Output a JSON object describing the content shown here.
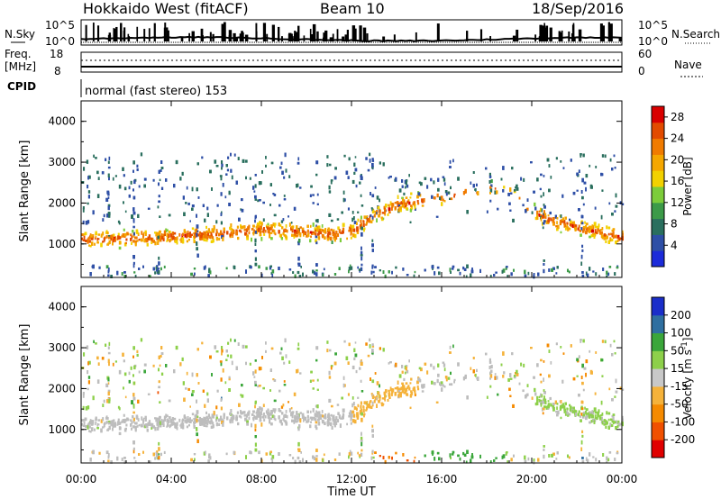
{
  "header": {
    "station": "Hokkaido West (fitACF)",
    "beam": "Beam 10",
    "date": "18/Sep/2016"
  },
  "strips": {
    "nsky_label": "N.Sky",
    "nsearch_label": "N.Search",
    "noise_tick_top": "10^5",
    "noise_tick_bottom": "10^0",
    "freq_label": "Freq.",
    "freq_units": "[MHz]",
    "freq_ticks": [
      "18",
      "8"
    ],
    "nave_label": "Nave",
    "nave_ticks": [
      "60",
      "0"
    ],
    "cpid_label": "CPID",
    "cpid_text": "normal (fast stereo) 153"
  },
  "colors": {
    "power": [
      "#1c2bd9",
      "#2e4fa6",
      "#2a6f5e",
      "#3c9a48",
      "#7ccc3a",
      "#f2d100",
      "#f5a700",
      "#f07b00",
      "#e24b00",
      "#d90000"
    ],
    "velocity": [
      "#e00000",
      "#f05000",
      "#f58a00",
      "#f5b23a",
      "#c8c8c8",
      "#8dd04a",
      "#3aa63a",
      "#2f6fa0",
      "#1a2ec9"
    ],
    "echo_gray": "#bdbdbd"
  },
  "chart_data": [
    {
      "type": "heatmap",
      "name": "power-panel",
      "xlabel": "Time UT",
      "ylabel": "Slant Range [km]",
      "xlim": [
        0,
        24
      ],
      "ylim": [
        180,
        4500
      ],
      "x_ticks": [
        "00:00",
        "04:00",
        "08:00",
        "12:00",
        "16:00",
        "20:00",
        "00:00"
      ],
      "y_ticks": [
        "1000",
        "2000",
        "3000",
        "4000"
      ],
      "colorbar_label": "Power [dB]",
      "colorbar_ticks": [
        "4",
        "8",
        "12",
        "16",
        "20",
        "24",
        "28"
      ],
      "colorbar_range": [
        0,
        30
      ],
      "echo_bands": [
        {
          "t": [
            0,
            3,
            6,
            8,
            9.5,
            11,
            12,
            13,
            14,
            15,
            18.5,
            20.5,
            22,
            24
          ],
          "range_center": [
            1100,
            1150,
            1250,
            1350,
            1300,
            1250,
            1300,
            1700,
            1950,
            2050,
            2350,
            1650,
            1400,
            1150
          ],
          "width": 350
        }
      ]
    },
    {
      "type": "heatmap",
      "name": "velocity-panel",
      "xlabel": "Time UT",
      "ylabel": "Slant Range [km]",
      "xlim": [
        0,
        24
      ],
      "ylim": [
        180,
        4500
      ],
      "x_ticks": [
        "00:00",
        "04:00",
        "08:00",
        "12:00",
        "16:00",
        "20:00",
        "00:00"
      ],
      "y_ticks": [
        "1000",
        "2000",
        "3000",
        "4000"
      ],
      "colorbar_label": "Velocity [m s^-1]",
      "colorbar_ticks": [
        "200",
        "100",
        "50",
        "15",
        "-15",
        "-50",
        "-100",
        "-200"
      ],
      "colorbar_range": [
        -250,
        250
      ]
    }
  ],
  "axes": {
    "time_label": "Time UT"
  }
}
